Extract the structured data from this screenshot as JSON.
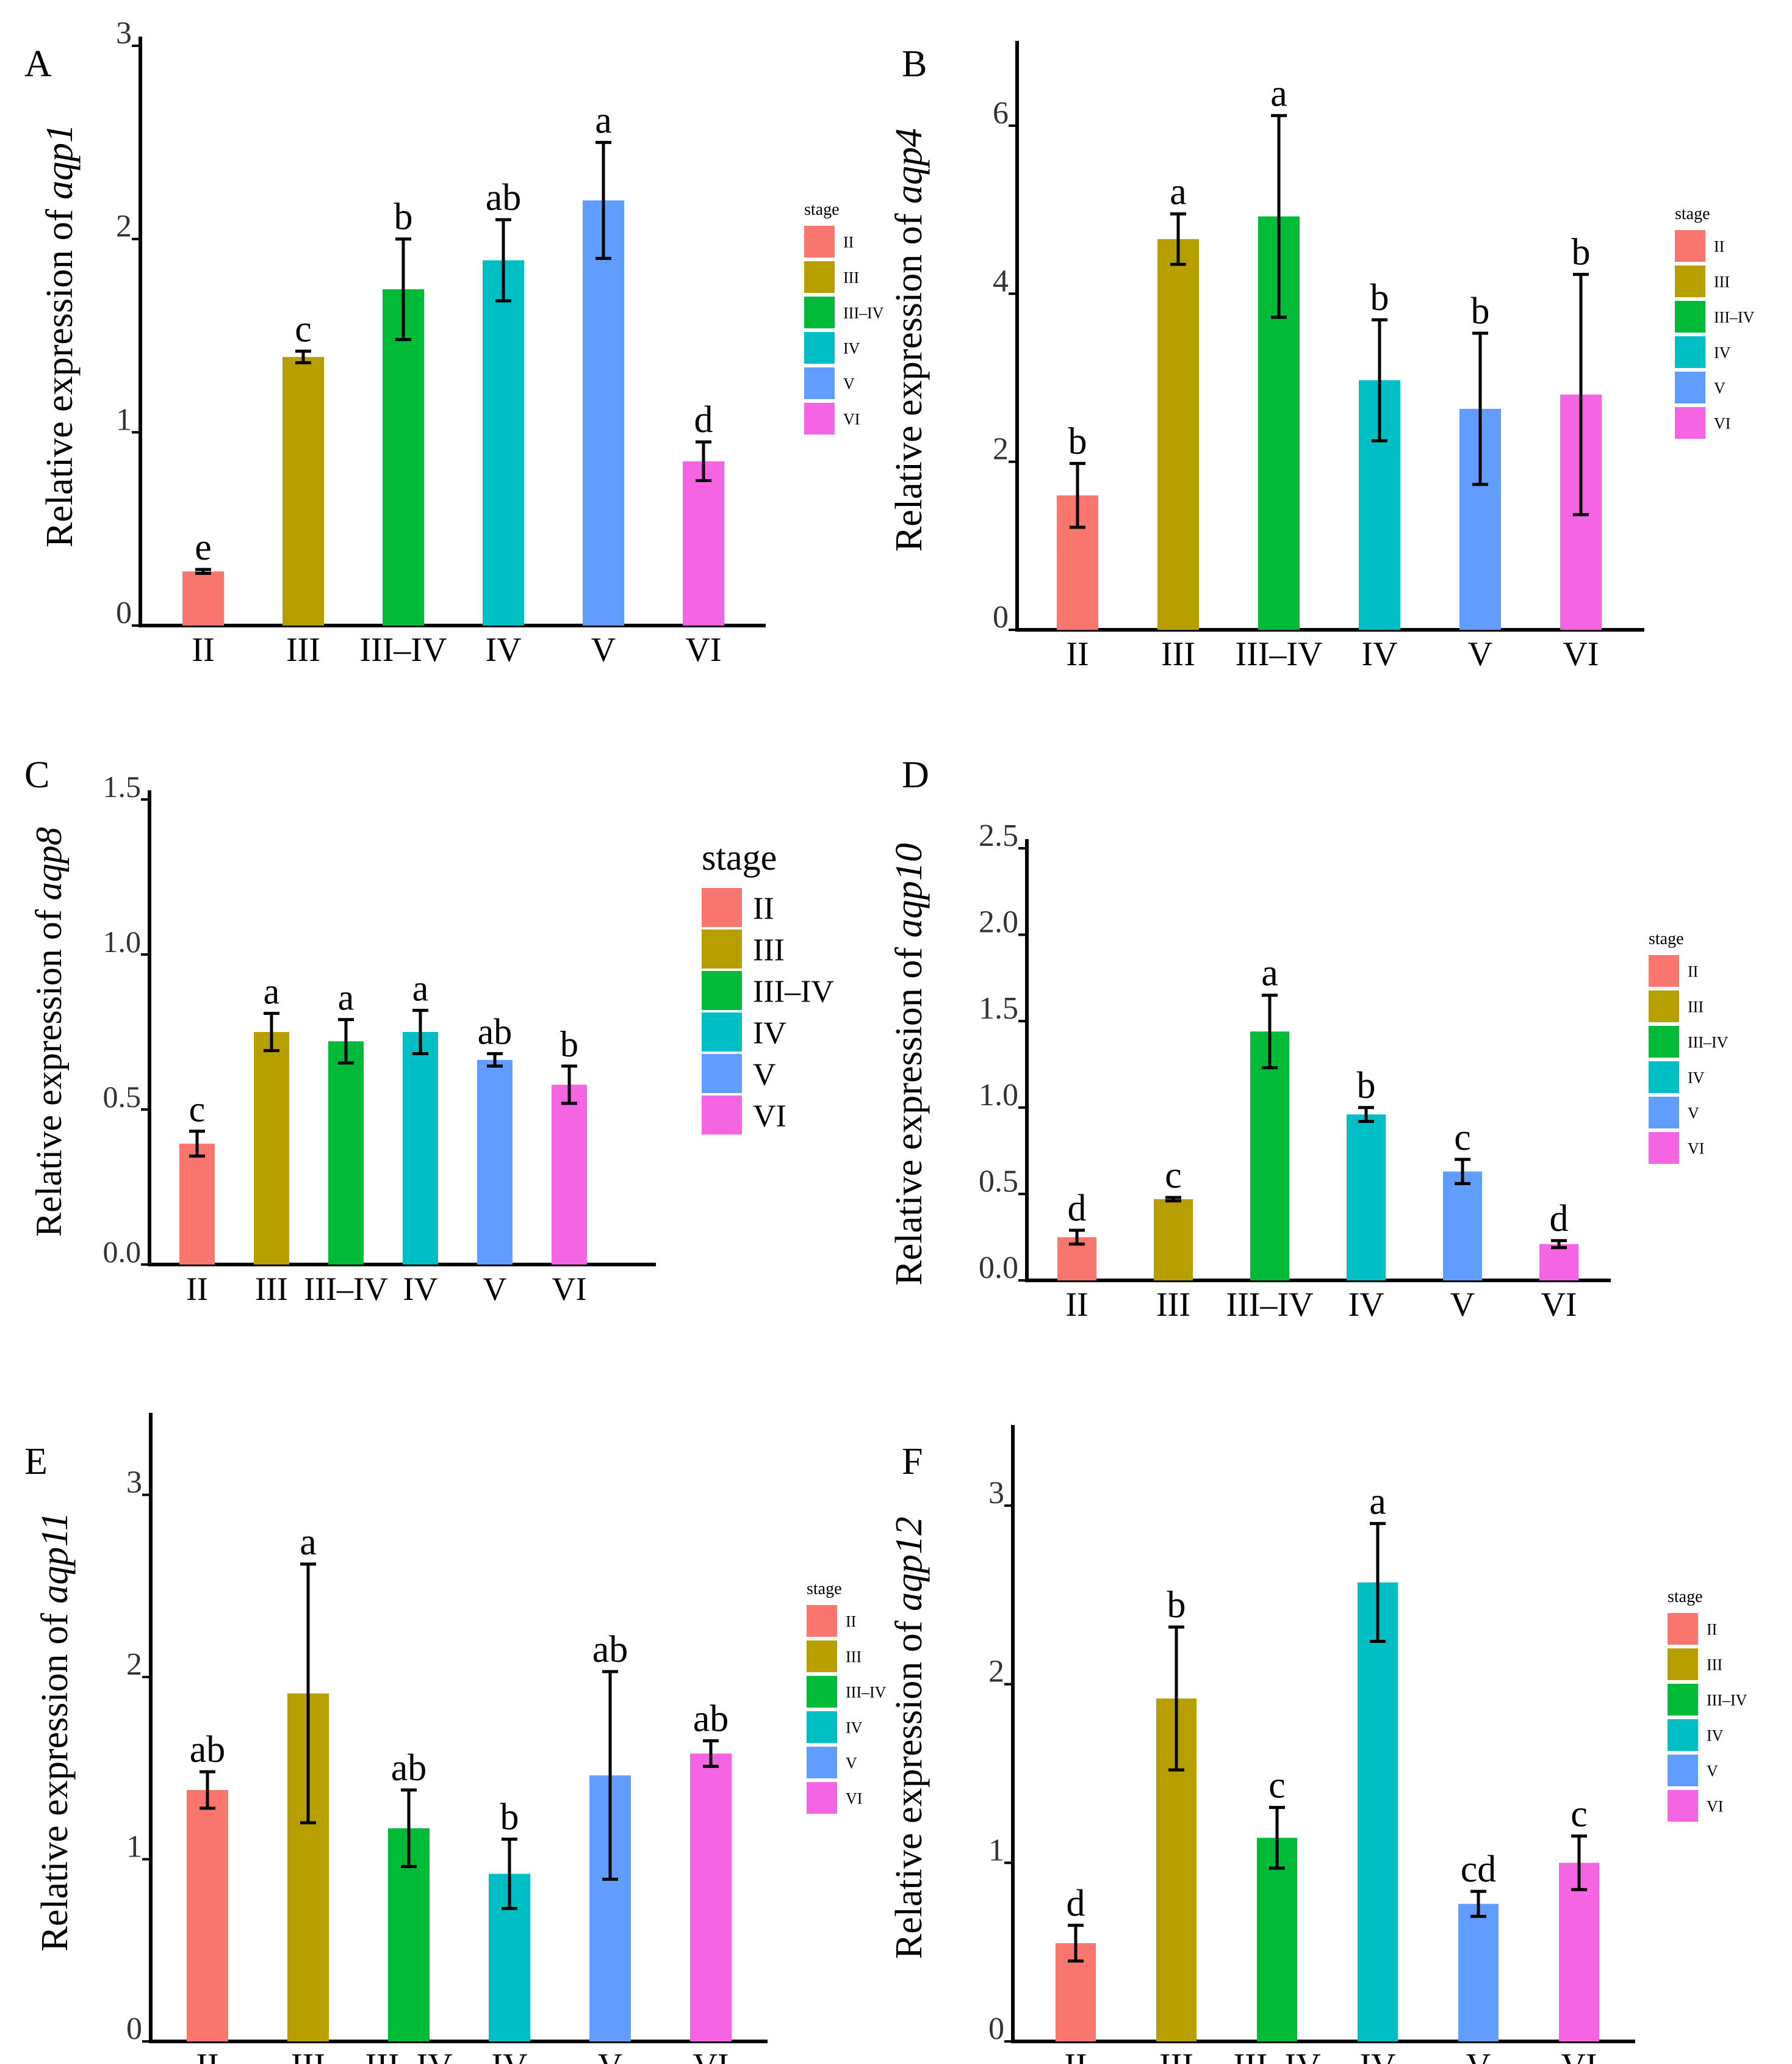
{
  "colors": {
    "II": "#F8766D",
    "III": "#B79F00",
    "III–IV": "#00BA38",
    "IV": "#00BFC4",
    "V": "#619CFF",
    "VI": "#F564E3",
    "axis": "#000000",
    "text": "#000000"
  },
  "chart_data": [
    {
      "panel": "A",
      "type": "bar",
      "gene": "aqp1",
      "ylabel_prefix": "Relative expression of ",
      "categories": [
        "II",
        "III",
        "III–IV",
        "IV",
        "V",
        "VI"
      ],
      "values": [
        0.28,
        1.39,
        1.74,
        1.89,
        2.2,
        0.85
      ],
      "errors": [
        0.01,
        0.03,
        0.26,
        0.21,
        0.3,
        0.1
      ],
      "letters": [
        "e",
        "c",
        "b",
        "ab",
        "a",
        "d"
      ],
      "ylim": [
        0,
        3
      ],
      "yticks": [
        "0",
        "1",
        "2",
        "3"
      ],
      "legend_title": "stage",
      "legend_labels": [
        "II",
        "III",
        "III–IV",
        "IV",
        "V",
        "VI"
      ],
      "legend_size": "small"
    },
    {
      "panel": "B",
      "type": "bar",
      "gene": "aqp4",
      "ylabel_prefix": "Relative expression of ",
      "categories": [
        "II",
        "III",
        "III–IV",
        "IV",
        "V",
        "VI"
      ],
      "values": [
        1.6,
        4.65,
        4.92,
        2.97,
        2.63,
        2.8
      ],
      "errors": [
        0.38,
        0.3,
        1.2,
        0.72,
        0.9,
        1.43
      ],
      "letters": [
        "b",
        "a",
        "a",
        "b",
        "b",
        "b"
      ],
      "ylim": [
        0,
        6.9
      ],
      "yticks": [
        "0",
        "2",
        "4",
        "6"
      ],
      "legend_title": "stage",
      "legend_labels": [
        "II",
        "III",
        "III–IV",
        "IV",
        "V",
        "VI"
      ],
      "legend_size": "small"
    },
    {
      "panel": "C",
      "type": "bar",
      "gene": "aqp8",
      "ylabel_prefix": "Relative expression of ",
      "categories": [
        "II",
        "III",
        "III–IV",
        "IV",
        "V",
        "VI"
      ],
      "values": [
        0.39,
        0.75,
        0.72,
        0.75,
        0.66,
        0.58
      ],
      "errors": [
        0.04,
        0.06,
        0.07,
        0.07,
        0.02,
        0.06
      ],
      "letters": [
        "c",
        "a",
        "a",
        "a",
        "ab",
        "b"
      ],
      "ylim": [
        0,
        1.5
      ],
      "yticks": [
        "0.0",
        "0.5",
        "1.0",
        "1.5"
      ],
      "legend_title": "stage",
      "legend_labels": [
        "II",
        "III",
        "III–IV",
        "IV",
        "V",
        "VI"
      ],
      "legend_size": "large"
    },
    {
      "panel": "D",
      "type": "bar",
      "gene": "aqp10",
      "ylabel_prefix": "Relative expression of ",
      "categories": [
        "II",
        "III",
        "III–IV",
        "IV",
        "V",
        "VI"
      ],
      "values": [
        0.25,
        0.47,
        1.44,
        0.96,
        0.63,
        0.21
      ],
      "errors": [
        0.04,
        0.01,
        0.21,
        0.04,
        0.07,
        0.02
      ],
      "letters": [
        "d",
        "c",
        "a",
        "b",
        "c",
        "d"
      ],
      "ylim": [
        0,
        2.5
      ],
      "yticks": [
        "0.0",
        "0.5",
        "1.0",
        "1.5",
        "2.0",
        "2.5"
      ],
      "legend_title": "stage",
      "legend_labels": [
        "II",
        "III",
        "III–IV",
        "IV",
        "V",
        "VI"
      ],
      "legend_size": "small"
    },
    {
      "panel": "E",
      "type": "bar",
      "gene": "aqp11",
      "ylabel_prefix": "Relative expression of ",
      "categories": [
        "II",
        "III",
        "III–IV",
        "IV",
        "V",
        "VI"
      ],
      "values": [
        1.38,
        1.91,
        1.17,
        0.92,
        1.46,
        1.58
      ],
      "errors": [
        0.1,
        0.71,
        0.21,
        0.19,
        0.57,
        0.07
      ],
      "letters": [
        "ab",
        "a",
        "ab",
        "b",
        "ab",
        "ab"
      ],
      "ylim": [
        0,
        3.4
      ],
      "yticks": [
        "0",
        "1",
        "2",
        "3"
      ],
      "legend_title": "stage",
      "legend_labels": [
        "II",
        "III",
        "III–IV",
        "IV",
        "V",
        "VI"
      ],
      "legend_size": "small"
    },
    {
      "panel": "F",
      "type": "bar",
      "gene": "aqp12",
      "ylabel_prefix": "Relative expression of ",
      "categories": [
        "II",
        "III",
        "III–IV",
        "IV",
        "V",
        "VI"
      ],
      "values": [
        0.55,
        1.92,
        1.14,
        2.57,
        0.77,
        1.0
      ],
      "errors": [
        0.1,
        0.4,
        0.17,
        0.33,
        0.07,
        0.15
      ],
      "letters": [
        "d",
        "b",
        "c",
        "a",
        "cd",
        "c"
      ],
      "ylim": [
        0,
        3.4
      ],
      "yticks": [
        "0",
        "1",
        "2",
        "3"
      ],
      "legend_title": "stage",
      "legend_labels": [
        "II",
        "III",
        "III–IV",
        "IV",
        "V",
        "VI"
      ],
      "legend_size": "small"
    }
  ]
}
